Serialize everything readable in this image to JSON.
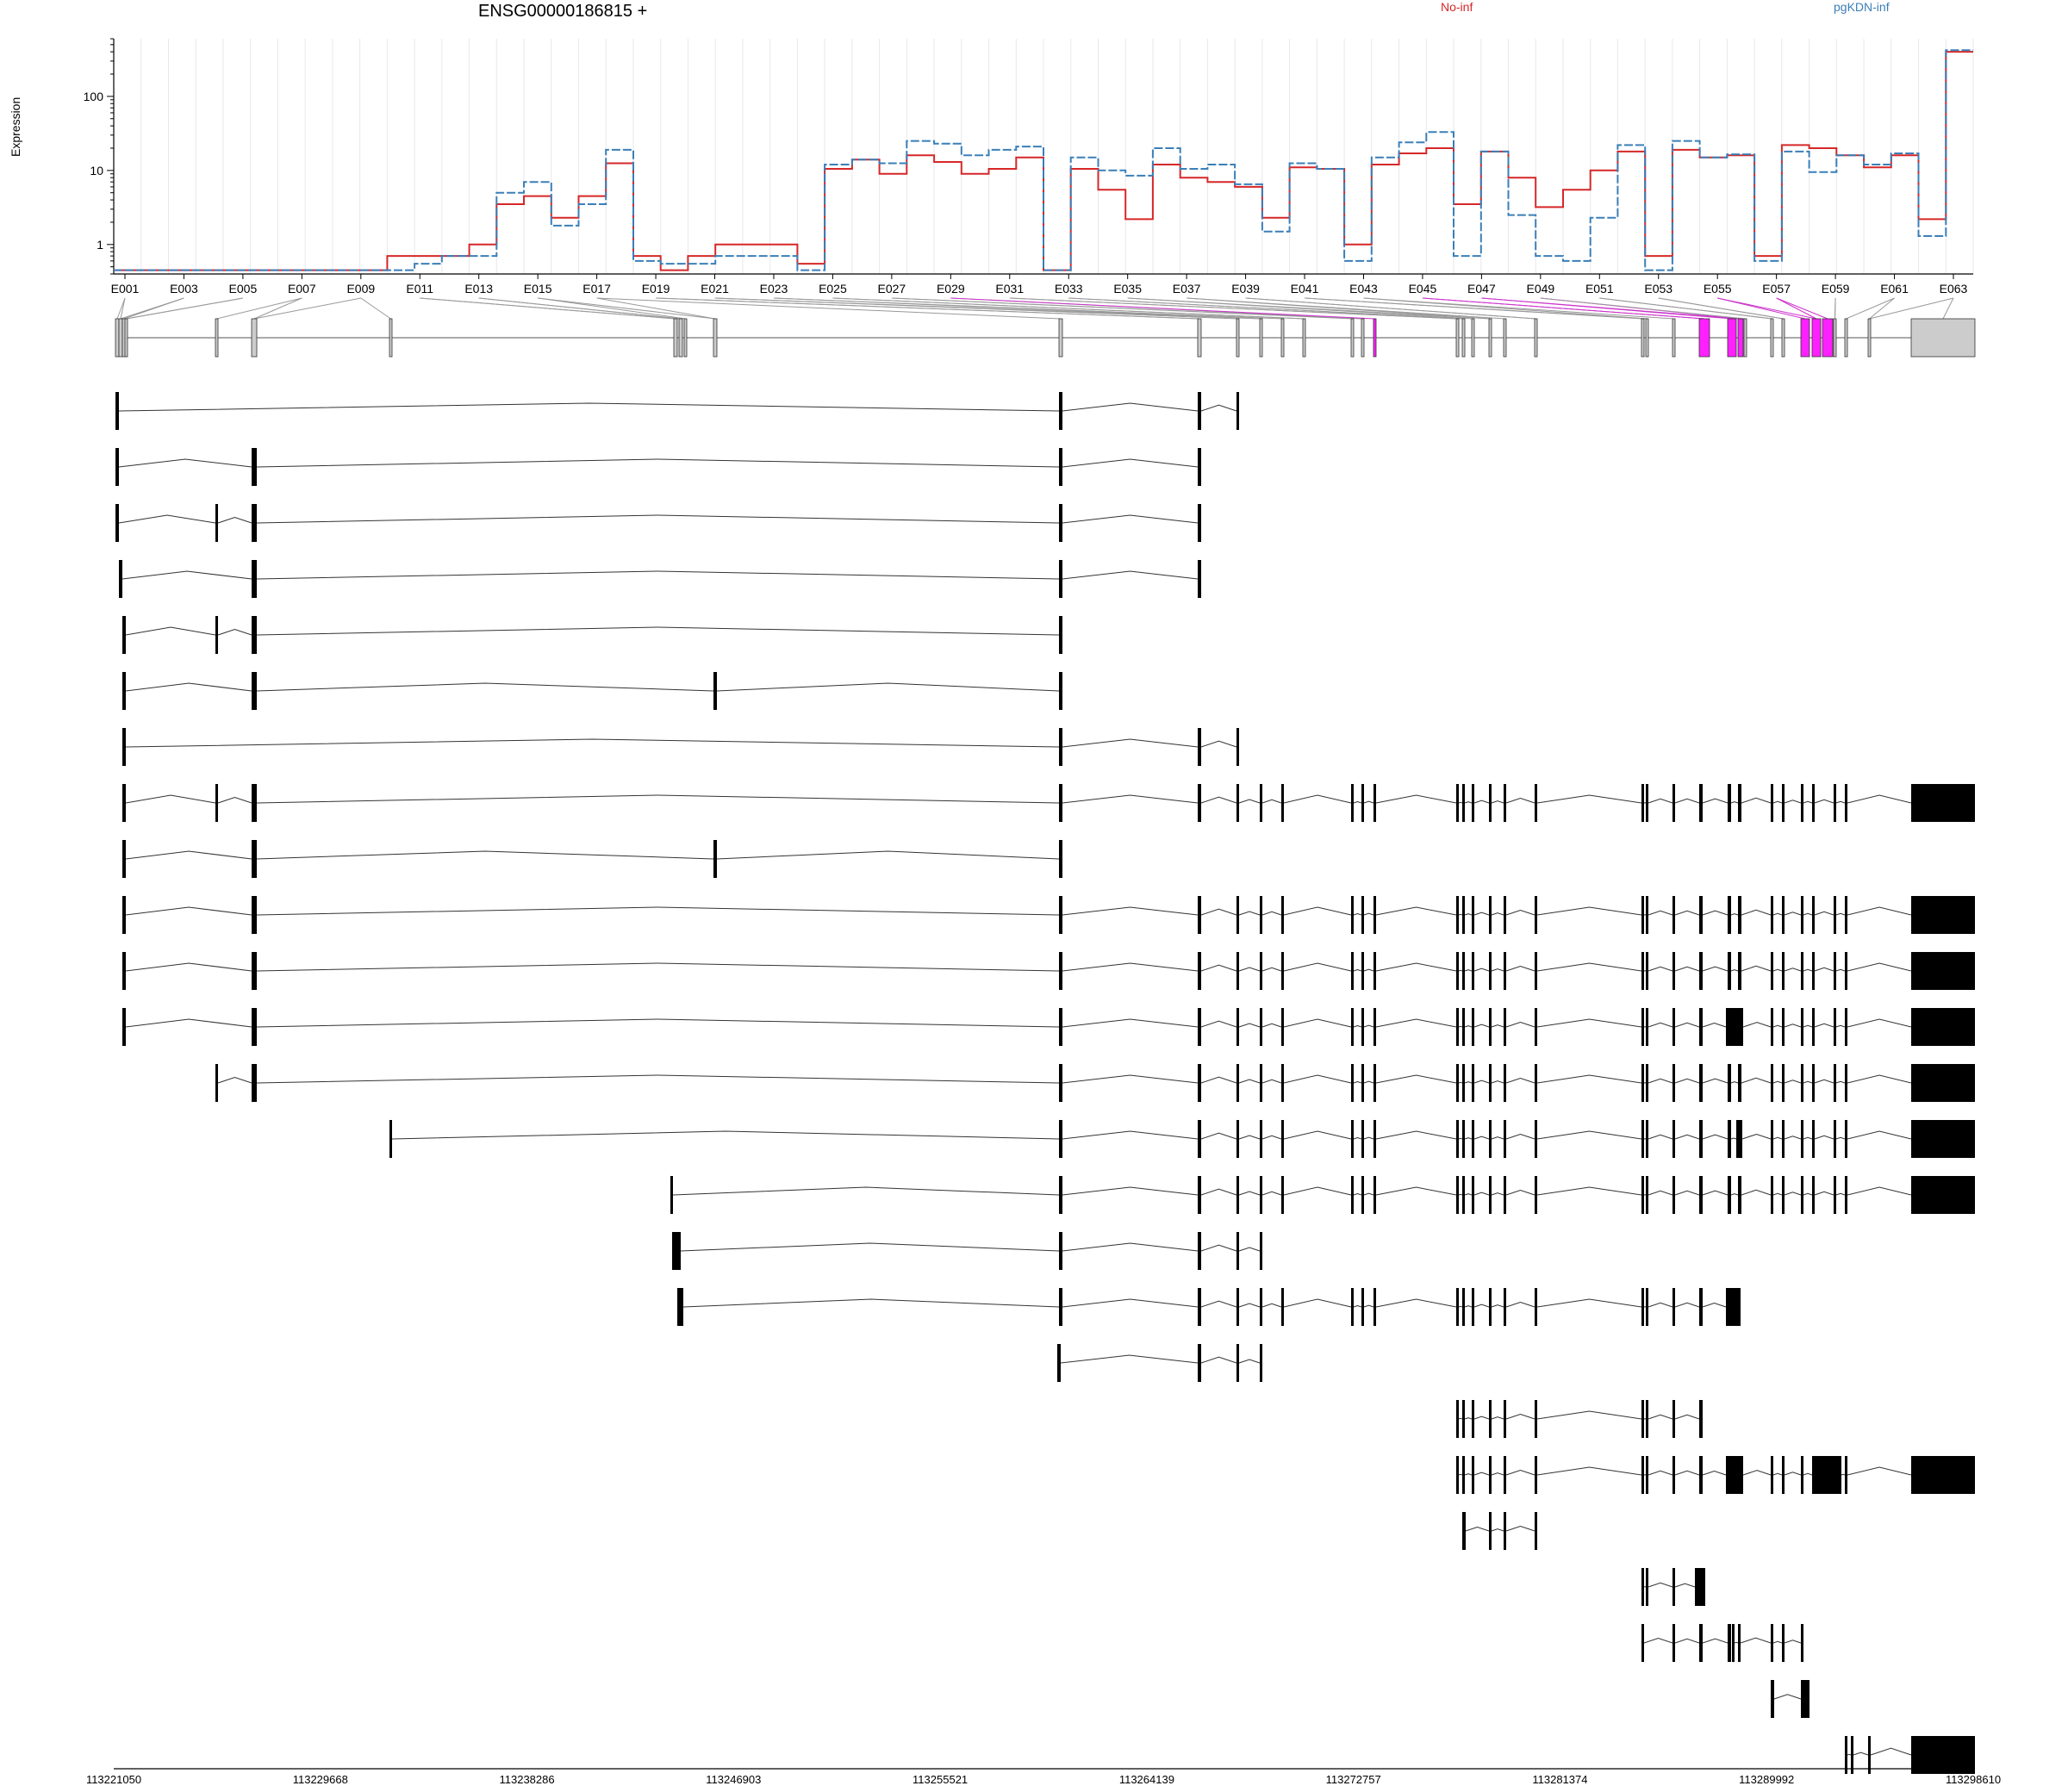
{
  "header": {
    "gene_title": "ENSG00000186815 +",
    "legend": [
      {
        "label": "No-inf",
        "color": "#d62728"
      },
      {
        "label": "pgKDN-inf",
        "color": "#3a7fb8"
      }
    ],
    "ylabel": "Expression"
  },
  "chart_data": {
    "type": "line",
    "scale": "log",
    "ylabel": "Expression",
    "yticks": [
      "1",
      "10",
      "100"
    ],
    "ytick_values": [
      1,
      10,
      100
    ],
    "exon_labels": [
      "E001",
      "E003",
      "E005",
      "E007",
      "E009",
      "E011",
      "E013",
      "E015",
      "E017",
      "E019",
      "E021",
      "E023",
      "E025",
      "E027",
      "E029",
      "E031",
      "E033",
      "E035",
      "E037",
      "E039",
      "E041",
      "E043",
      "E045",
      "E047",
      "E049",
      "E051",
      "E053",
      "E055",
      "E057",
      "E059",
      "E061",
      "E063"
    ],
    "xticks": [
      "113221050",
      "113229668",
      "113238286",
      "113246903",
      "113255521",
      "113264139",
      "113272757",
      "113281374",
      "113289992",
      "113298610"
    ],
    "xtick_values": [
      113221050,
      113229668,
      113238286,
      113246903,
      113255521,
      113264139,
      113272757,
      113281374,
      113289992,
      113298610
    ],
    "genomic_range": [
      113221050,
      113298610
    ],
    "series": [
      {
        "name": "No-inf",
        "color": "#d62728",
        "values": [
          0.45,
          0.45,
          0.45,
          0.45,
          0.45,
          0.45,
          0.45,
          0.45,
          0.45,
          0.45,
          0.7,
          0.7,
          0.7,
          1.0,
          3.5,
          4.5,
          2.3,
          4.5,
          12.5,
          0.7,
          0.45,
          0.7,
          1.0,
          1.0,
          1.0,
          0.55,
          10.5,
          14,
          9,
          16,
          13,
          9,
          10.5,
          15,
          0.45,
          10.5,
          5.5,
          2.2,
          12,
          8,
          7,
          6,
          2.3,
          11,
          10.5,
          1.0,
          12,
          17,
          20,
          3.5,
          18,
          8,
          3.2,
          5.5,
          10,
          18,
          0.7,
          19,
          15,
          16,
          0.7,
          22,
          20,
          16,
          11,
          16,
          2.2,
          400
        ]
      },
      {
        "name": "pgKDN-inf",
        "color": "#3a7fb8",
        "values": [
          0.45,
          0.45,
          0.45,
          0.45,
          0.45,
          0.45,
          0.45,
          0.45,
          0.45,
          0.45,
          0.45,
          0.55,
          0.7,
          0.7,
          5,
          7,
          1.8,
          3.5,
          19,
          0.6,
          0.55,
          0.55,
          0.7,
          0.7,
          0.7,
          0.45,
          12,
          14,
          12.5,
          25,
          23,
          16,
          19,
          21,
          0.45,
          15,
          10,
          8.5,
          20,
          10.5,
          12,
          6.5,
          1.5,
          12.5,
          10.5,
          0.6,
          15,
          24,
          33,
          0.7,
          18,
          2.5,
          0.7,
          0.6,
          2.3,
          22,
          0.45,
          25,
          15,
          16.5,
          0.6,
          18,
          9.5,
          16,
          12,
          17,
          1.3,
          420
        ]
      }
    ],
    "feature_highlight": "#ff20ff",
    "transcript_count": 25
  }
}
